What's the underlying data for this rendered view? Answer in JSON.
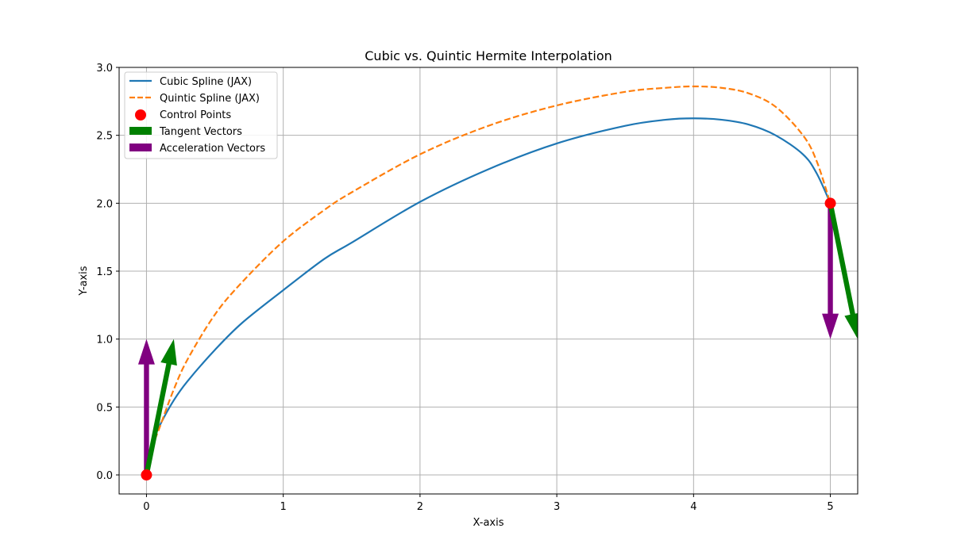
{
  "chart_data": {
    "type": "line",
    "title": "Cubic vs. Quintic Hermite Interpolation",
    "xlabel": "X-axis",
    "ylabel": "Y-axis",
    "xlim": [
      -0.2,
      5.2
    ],
    "ylim": [
      -0.14,
      3.0
    ],
    "grid": true,
    "legend_position": "top-left",
    "x_ticks": [
      {
        "value": 0,
        "label": "0"
      },
      {
        "value": 1,
        "label": "1"
      },
      {
        "value": 2,
        "label": "2"
      },
      {
        "value": 3,
        "label": "3"
      },
      {
        "value": 4,
        "label": "4"
      },
      {
        "value": 5,
        "label": "5"
      }
    ],
    "y_ticks": [
      {
        "value": 0.0,
        "label": "0.0"
      },
      {
        "value": 0.5,
        "label": "0.5"
      },
      {
        "value": 1.0,
        "label": "1.0"
      },
      {
        "value": 1.5,
        "label": "1.5"
      },
      {
        "value": 2.0,
        "label": "2.0"
      },
      {
        "value": 2.5,
        "label": "2.5"
      },
      {
        "value": 3.0,
        "label": "3.0"
      }
    ],
    "series": [
      {
        "name": "Cubic Spline (JAX)",
        "style": "solid",
        "color": "#1f77b4",
        "x": [
          0,
          0.05,
          0.1,
          0.2,
          0.3,
          0.5,
          0.7,
          1.0,
          1.3,
          1.5,
          2.0,
          2.5,
          3.0,
          3.5,
          3.8,
          4.0,
          4.2,
          4.4,
          4.6,
          4.8,
          4.9,
          5.0
        ],
        "y": [
          0,
          0.25,
          0.37,
          0.55,
          0.69,
          0.92,
          1.12,
          1.36,
          1.59,
          1.71,
          2.01,
          2.25,
          2.44,
          2.57,
          2.615,
          2.625,
          2.615,
          2.58,
          2.5,
          2.36,
          2.22,
          2.0
        ]
      },
      {
        "name": "Quintic Spline (JAX)",
        "style": "dashed",
        "color": "#ff7f0e",
        "x": [
          0,
          0.05,
          0.1,
          0.2,
          0.3,
          0.5,
          0.7,
          1.0,
          1.3,
          1.5,
          2.0,
          2.5,
          3.0,
          3.5,
          3.8,
          4.0,
          4.2,
          4.4,
          4.6,
          4.8,
          4.9,
          5.0
        ],
        "y": [
          0,
          0.22,
          0.36,
          0.63,
          0.85,
          1.18,
          1.42,
          1.72,
          1.95,
          2.08,
          2.36,
          2.57,
          2.72,
          2.82,
          2.85,
          2.86,
          2.85,
          2.81,
          2.71,
          2.5,
          2.31,
          2.0
        ]
      }
    ],
    "control_points": {
      "name": "Control Points",
      "color": "#ff0000",
      "points": [
        [
          0,
          0
        ],
        [
          5,
          2
        ]
      ]
    },
    "tangent_vectors": {
      "name": "Tangent Vectors",
      "color": "#008000",
      "vectors": [
        {
          "from": [
            0,
            0
          ],
          "to": [
            0.2,
            1.0
          ]
        },
        {
          "from": [
            5,
            2
          ],
          "to": [
            5.2,
            1.0
          ]
        }
      ]
    },
    "acceleration_vectors": {
      "name": "Acceleration Vectors",
      "color": "#800080",
      "vectors": [
        {
          "from": [
            0,
            0
          ],
          "to": [
            0,
            1.0
          ]
        },
        {
          "from": [
            5,
            2
          ],
          "to": [
            5,
            1.0
          ]
        }
      ]
    }
  }
}
